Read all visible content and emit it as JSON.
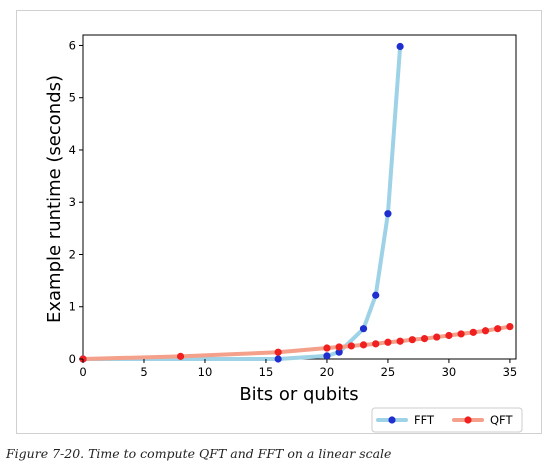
{
  "caption": "Figure 7-20. Time to compute QFT and FFT on a linear scale",
  "chart_data": {
    "type": "line",
    "title": "",
    "xlabel": "Bits or qubits",
    "ylabel": "Example runtime (seconds)",
    "xlim": [
      0,
      35.5
    ],
    "ylim": [
      0,
      6.2
    ],
    "xticks": [
      0,
      5,
      10,
      15,
      20,
      25,
      30,
      35
    ],
    "yticks": [
      0,
      1,
      2,
      3,
      4,
      5,
      6
    ],
    "grid": false,
    "legend_position": "bottom-right",
    "series": [
      {
        "name": "FFT",
        "line_color": "#9ed2e6",
        "marker_color": "#1f2fcf",
        "x": [
          0,
          16,
          20,
          21,
          23,
          24,
          25,
          26
        ],
        "y": [
          0,
          0.0,
          0.06,
          0.13,
          0.58,
          1.22,
          2.78,
          5.98
        ]
      },
      {
        "name": "QFT",
        "line_color": "#f4a08a",
        "marker_color": "#f02020",
        "x": [
          0,
          8,
          16,
          20,
          21,
          22,
          23,
          24,
          25,
          26,
          27,
          28,
          29,
          30,
          31,
          32,
          33,
          34,
          35
        ],
        "y": [
          0,
          0.05,
          0.13,
          0.21,
          0.23,
          0.25,
          0.27,
          0.29,
          0.32,
          0.34,
          0.37,
          0.39,
          0.42,
          0.45,
          0.48,
          0.51,
          0.54,
          0.58,
          0.62
        ]
      }
    ]
  }
}
